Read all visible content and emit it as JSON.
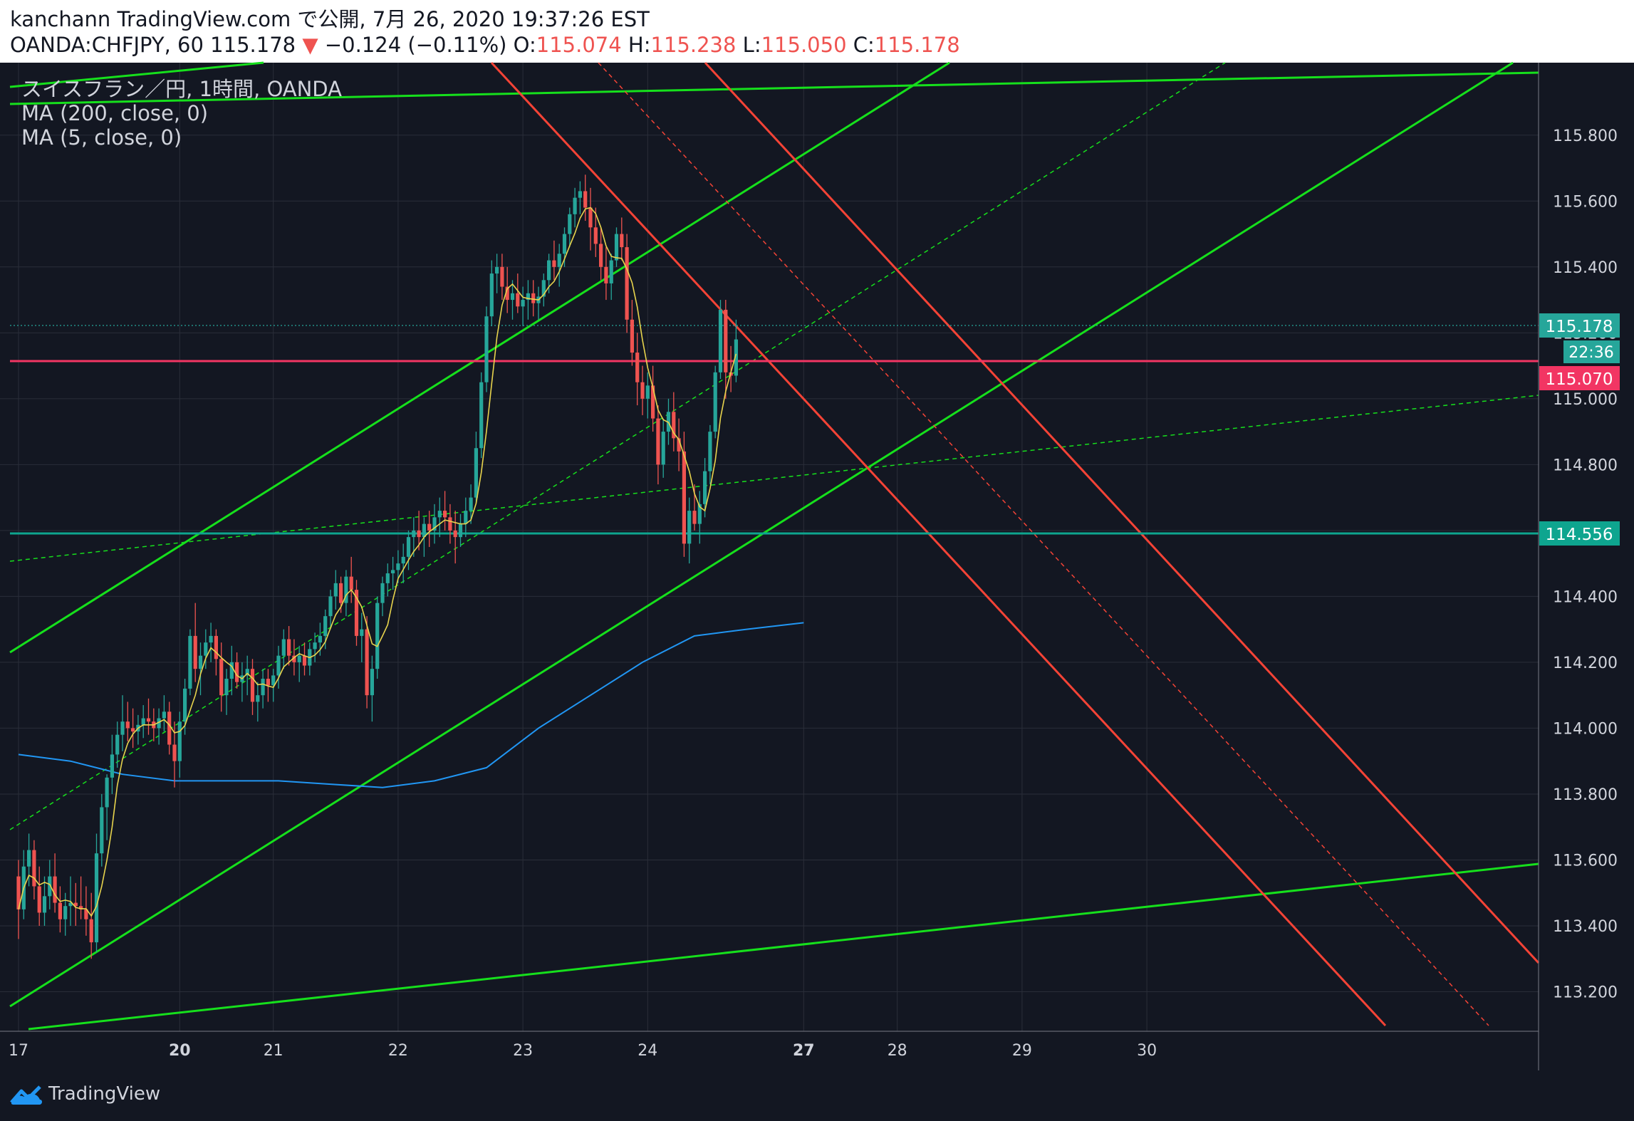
{
  "header": {
    "line1": "kanchann TradingView.com で公開, 7月 26, 2020 19:37:26 EST",
    "symbol_prefix": "OANDA:CHFJPY, 60 115.178",
    "change_arrow": "▼",
    "change": "−0.124 (−0.11%)",
    "o_label": "O:",
    "o_val": "115.074",
    "h_label": "H:",
    "h_val": "115.238",
    "l_label": "L:",
    "l_val": "115.050",
    "c_label": "C:",
    "c_val": "115.178"
  },
  "legend": {
    "title": "スイスフラン／円, 1時間, OANDA",
    "ma200": "MA (200, close, 0)",
    "ma5": "MA (5, close, 0)"
  },
  "price_labels": {
    "last": "115.178",
    "countdown": "22:36",
    "red_line": "115.070",
    "teal_line": "114.556"
  },
  "footer": {
    "brand": "TradingView"
  },
  "colors": {
    "background": "#131722",
    "grid": "#2a2e39",
    "up": "#26a69a",
    "down": "#ef5350",
    "ma200": "#2196f3",
    "ma5": "#e8d44d",
    "channel_green": "#16e01c",
    "channel_red": "#f44336",
    "support_red": "#f23563",
    "support_teal": "#0ea58f"
  },
  "chart_data": {
    "type": "candlestick",
    "title": "スイスフラン／円, 1時間, OANDA",
    "symbol": "OANDA:CHFJPY",
    "interval": "60",
    "xlabel": "",
    "ylabel": "",
    "ylim": [
      113.08,
      116.02
    ],
    "y_ticks": [
      "113.200",
      "113.400",
      "113.600",
      "113.800",
      "114.000",
      "114.200",
      "114.400",
      "114.600",
      "114.800",
      "115.000",
      "115.200",
      "115.400",
      "115.600",
      "115.800"
    ],
    "x_ticks": [
      {
        "label": "17",
        "bar": 0
      },
      {
        "label": "20",
        "bar": 31
      },
      {
        "label": "21",
        "bar": 49
      },
      {
        "label": "22",
        "bar": 73
      },
      {
        "label": "23",
        "bar": 97
      },
      {
        "label": "24",
        "bar": 121
      },
      {
        "label": "27",
        "bar": 151
      },
      {
        "label": "28",
        "bar": 169
      },
      {
        "label": "29",
        "bar": 193
      },
      {
        "label": "30",
        "bar": 217
      }
    ],
    "bold_x_ticks": [
      "20",
      "27"
    ],
    "ohlc": [
      [
        113.55,
        113.6,
        113.36,
        113.45
      ],
      [
        113.45,
        113.63,
        113.42,
        113.58
      ],
      [
        113.58,
        113.68,
        113.52,
        113.63
      ],
      [
        113.63,
        113.66,
        113.48,
        113.52
      ],
      [
        113.52,
        113.58,
        113.4,
        113.44
      ],
      [
        113.44,
        113.55,
        113.4,
        113.49
      ],
      [
        113.49,
        113.6,
        113.45,
        113.55
      ],
      [
        113.55,
        113.62,
        113.44,
        113.47
      ],
      [
        113.47,
        113.52,
        113.38,
        113.42
      ],
      [
        113.42,
        113.5,
        113.37,
        113.46
      ],
      [
        113.46,
        113.55,
        113.4,
        113.47
      ],
      [
        113.47,
        113.53,
        113.4,
        113.46
      ],
      [
        113.46,
        113.55,
        113.42,
        113.45
      ],
      [
        113.45,
        113.52,
        113.37,
        113.42
      ],
      [
        113.42,
        113.5,
        113.3,
        113.35
      ],
      [
        113.35,
        113.68,
        113.32,
        113.62
      ],
      [
        113.62,
        113.8,
        113.58,
        113.76
      ],
      [
        113.76,
        113.86,
        113.66,
        113.85
      ],
      [
        113.85,
        113.98,
        113.8,
        113.92
      ],
      [
        113.92,
        114.02,
        113.88,
        113.98
      ],
      [
        113.98,
        114.1,
        113.93,
        114.02
      ],
      [
        114.02,
        114.08,
        113.96,
        114.0
      ],
      [
        114.0,
        114.06,
        113.94,
        113.99
      ],
      [
        113.99,
        114.04,
        113.95,
        114.01
      ],
      [
        114.01,
        114.07,
        113.97,
        114.03
      ],
      [
        114.03,
        114.09,
        113.98,
        114.02
      ],
      [
        114.02,
        114.06,
        113.96,
        114.0
      ],
      [
        114.0,
        114.06,
        113.95,
        114.03
      ],
      [
        114.03,
        114.1,
        113.99,
        114.05
      ],
      [
        114.05,
        114.08,
        113.92,
        113.95
      ],
      [
        113.95,
        114.02,
        113.82,
        113.9
      ],
      [
        113.9,
        114.05,
        113.85,
        114.02
      ],
      [
        114.02,
        114.15,
        113.98,
        114.12
      ],
      [
        114.12,
        114.3,
        114.1,
        114.28
      ],
      [
        114.28,
        114.38,
        114.14,
        114.18
      ],
      [
        114.18,
        114.26,
        114.1,
        114.22
      ],
      [
        114.22,
        114.3,
        114.18,
        114.26
      ],
      [
        114.26,
        114.32,
        114.2,
        114.28
      ],
      [
        114.28,
        114.3,
        114.16,
        114.21
      ],
      [
        114.21,
        114.26,
        114.05,
        114.1
      ],
      [
        114.1,
        114.18,
        114.04,
        114.15
      ],
      [
        114.15,
        114.25,
        114.1,
        114.2
      ],
      [
        114.2,
        114.23,
        114.12,
        114.14
      ],
      [
        114.14,
        114.2,
        114.08,
        114.16
      ],
      [
        114.16,
        114.22,
        114.1,
        114.18
      ],
      [
        114.18,
        114.21,
        114.04,
        114.08
      ],
      [
        114.08,
        114.14,
        114.02,
        114.1
      ],
      [
        114.1,
        114.18,
        114.06,
        114.15
      ],
      [
        114.15,
        114.18,
        114.08,
        114.13
      ],
      [
        114.13,
        114.18,
        114.08,
        114.16
      ],
      [
        114.16,
        114.25,
        114.12,
        114.22
      ],
      [
        114.22,
        114.3,
        114.18,
        114.27
      ],
      [
        114.27,
        114.31,
        114.19,
        114.22
      ],
      [
        114.22,
        114.27,
        114.16,
        114.2
      ],
      [
        114.2,
        114.25,
        114.14,
        114.22
      ],
      [
        114.22,
        114.26,
        114.16,
        114.19
      ],
      [
        114.19,
        114.26,
        114.16,
        114.24
      ],
      [
        114.24,
        114.29,
        114.2,
        114.26
      ],
      [
        114.26,
        114.32,
        114.22,
        114.28
      ],
      [
        114.28,
        114.36,
        114.24,
        114.34
      ],
      [
        114.34,
        114.42,
        114.3,
        114.4
      ],
      [
        114.4,
        114.48,
        114.36,
        114.44
      ],
      [
        114.44,
        114.46,
        114.35,
        114.38
      ],
      [
        114.38,
        114.48,
        114.34,
        114.46
      ],
      [
        114.46,
        114.52,
        114.38,
        114.42
      ],
      [
        114.42,
        114.45,
        114.25,
        114.28
      ],
      [
        114.28,
        114.35,
        114.2,
        114.3
      ],
      [
        114.3,
        114.34,
        114.06,
        114.1
      ],
      [
        114.1,
        114.22,
        114.02,
        114.18
      ],
      [
        114.18,
        114.4,
        114.15,
        114.38
      ],
      [
        114.38,
        114.46,
        114.34,
        114.44
      ],
      [
        114.44,
        114.5,
        114.4,
        114.47
      ],
      [
        114.47,
        114.52,
        114.42,
        114.48
      ],
      [
        114.48,
        114.54,
        114.44,
        114.5
      ],
      [
        114.5,
        114.56,
        114.44,
        114.52
      ],
      [
        114.52,
        114.6,
        114.48,
        114.58
      ],
      [
        114.58,
        114.64,
        114.52,
        114.6
      ],
      [
        114.6,
        114.66,
        114.54,
        114.58
      ],
      [
        114.58,
        114.64,
        114.52,
        114.62
      ],
      [
        114.62,
        114.66,
        114.55,
        114.6
      ],
      [
        114.6,
        114.68,
        114.56,
        114.64
      ],
      [
        114.64,
        114.7,
        114.58,
        114.66
      ],
      [
        114.66,
        114.72,
        114.6,
        114.64
      ],
      [
        114.64,
        114.68,
        114.56,
        114.6
      ],
      [
        114.6,
        114.66,
        114.5,
        114.58
      ],
      [
        114.58,
        114.65,
        114.55,
        114.62
      ],
      [
        114.62,
        114.7,
        114.58,
        114.66
      ],
      [
        114.66,
        114.74,
        114.62,
        114.7
      ],
      [
        114.7,
        114.9,
        114.68,
        114.85
      ],
      [
        114.85,
        115.08,
        114.82,
        115.05
      ],
      [
        115.05,
        115.28,
        115.02,
        115.25
      ],
      [
        115.25,
        115.42,
        115.22,
        115.38
      ],
      [
        115.38,
        115.44,
        115.32,
        115.4
      ],
      [
        115.4,
        115.44,
        115.3,
        115.34
      ],
      [
        115.34,
        115.4,
        115.26,
        115.3
      ],
      [
        115.3,
        115.36,
        115.24,
        115.32
      ],
      [
        115.32,
        115.38,
        115.26,
        115.28
      ],
      [
        115.28,
        115.34,
        115.22,
        115.3
      ],
      [
        115.3,
        115.36,
        115.24,
        115.32
      ],
      [
        115.32,
        115.36,
        115.25,
        115.29
      ],
      [
        115.29,
        115.34,
        115.24,
        115.31
      ],
      [
        115.31,
        115.38,
        115.28,
        115.36
      ],
      [
        115.36,
        115.44,
        115.32,
        115.42
      ],
      [
        115.42,
        115.48,
        115.36,
        115.4
      ],
      [
        115.4,
        115.47,
        115.34,
        115.44
      ],
      [
        115.44,
        115.52,
        115.4,
        115.5
      ],
      [
        115.5,
        115.58,
        115.46,
        115.56
      ],
      [
        115.56,
        115.64,
        115.52,
        115.61
      ],
      [
        115.61,
        115.66,
        115.56,
        115.63
      ],
      [
        115.63,
        115.68,
        115.54,
        115.58
      ],
      [
        115.58,
        115.64,
        115.45,
        115.52
      ],
      [
        115.52,
        115.58,
        115.43,
        115.47
      ],
      [
        115.47,
        115.52,
        115.36,
        115.4
      ],
      [
        115.4,
        115.46,
        115.3,
        115.35
      ],
      [
        115.35,
        115.44,
        115.3,
        115.42
      ],
      [
        115.42,
        115.52,
        115.4,
        115.5
      ],
      [
        115.5,
        115.55,
        115.42,
        115.46
      ],
      [
        115.46,
        115.5,
        115.2,
        115.24
      ],
      [
        115.24,
        115.3,
        115.1,
        115.14
      ],
      [
        115.14,
        115.2,
        114.98,
        115.05
      ],
      [
        115.05,
        115.1,
        114.95,
        115.0
      ],
      [
        115.0,
        115.08,
        114.94,
        115.04
      ],
      [
        115.04,
        115.1,
        114.9,
        114.94
      ],
      [
        114.94,
        114.98,
        114.74,
        114.8
      ],
      [
        114.8,
        114.94,
        114.76,
        114.9
      ],
      [
        114.9,
        115.0,
        114.86,
        114.96
      ],
      [
        114.96,
        115.02,
        114.84,
        114.88
      ],
      [
        114.88,
        114.94,
        114.78,
        114.84
      ],
      [
        114.84,
        114.9,
        114.52,
        114.56
      ],
      [
        114.56,
        114.7,
        114.5,
        114.66
      ],
      [
        114.66,
        114.74,
        114.6,
        114.62
      ],
      [
        114.62,
        114.72,
        114.56,
        114.68
      ],
      [
        114.68,
        114.82,
        114.64,
        114.78
      ],
      [
        114.78,
        114.92,
        114.74,
        114.9
      ],
      [
        114.9,
        115.1,
        114.88,
        115.08
      ],
      [
        115.08,
        115.3,
        115.06,
        115.27
      ],
      [
        115.27,
        115.3,
        115.0,
        115.08
      ],
      [
        115.08,
        115.16,
        115.02,
        115.07
      ],
      [
        115.07,
        115.24,
        115.05,
        115.18
      ]
    ],
    "ma200": [
      [
        0,
        113.92
      ],
      [
        10,
        113.9
      ],
      [
        20,
        113.86
      ],
      [
        30,
        113.84
      ],
      [
        40,
        113.84
      ],
      [
        50,
        113.84
      ],
      [
        60,
        113.83
      ],
      [
        70,
        113.82
      ],
      [
        80,
        113.84
      ],
      [
        90,
        113.88
      ],
      [
        100,
        114.0
      ],
      [
        110,
        114.1
      ],
      [
        120,
        114.2
      ],
      [
        130,
        114.28
      ],
      [
        140,
        114.3
      ],
      [
        151,
        114.32
      ]
    ]
  }
}
